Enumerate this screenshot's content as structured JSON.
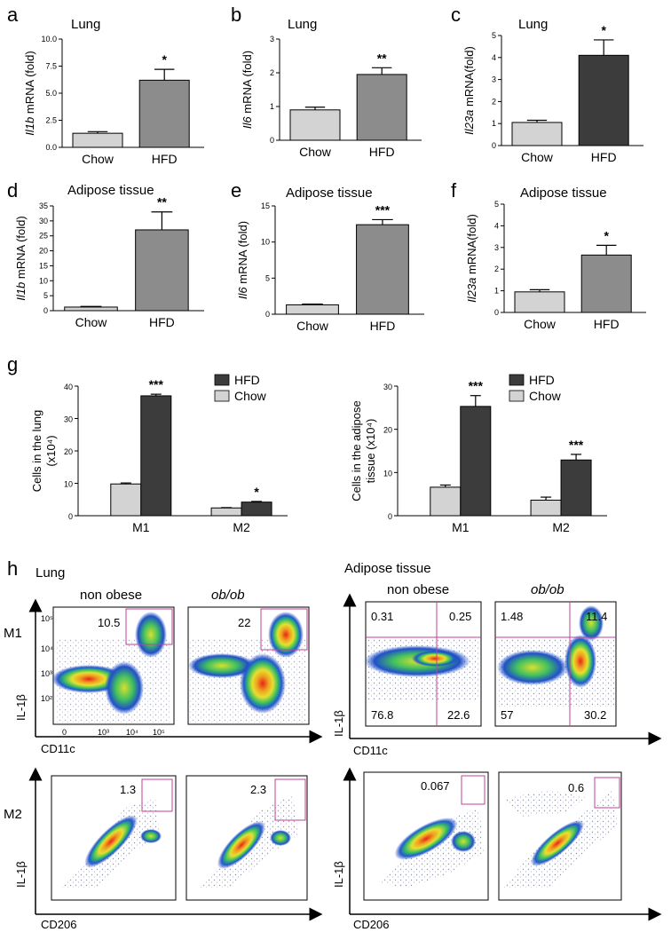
{
  "panel_labels": {
    "a": "a",
    "b": "b",
    "c": "c",
    "d": "d",
    "e": "e",
    "f": "f",
    "g": "g",
    "h": "h"
  },
  "colors": {
    "chow": "#d3d3d3",
    "hfd_light": "#8c8c8c",
    "hfd_dark": "#3c3c3c",
    "gate": "#c0409a"
  },
  "chart_data": [
    {
      "id": "a",
      "type": "bar",
      "title": "Lung",
      "ylabel_gene": "Il1b",
      "ylabel_rest": " mRNA (fold)",
      "categories": [
        "Chow",
        "HFD"
      ],
      "values": [
        1.3,
        6.2
      ],
      "errors": [
        0.15,
        1.0
      ],
      "ylim": [
        0,
        10
      ],
      "yticks": [
        "0.0",
        "2.5",
        "5.0",
        "7.5",
        "10.0"
      ],
      "yvals": [
        0,
        2.5,
        5,
        7.5,
        10
      ],
      "sig": "*",
      "hfd_color": "#8c8c8c"
    },
    {
      "id": "b",
      "type": "bar",
      "title": "Lung",
      "ylabel_gene": "Il6",
      "ylabel_rest": " mRNA (fold)",
      "categories": [
        "Chow",
        "HFD"
      ],
      "values": [
        0.9,
        1.95
      ],
      "errors": [
        0.08,
        0.2
      ],
      "ylim": [
        0,
        3
      ],
      "yticks": [
        "0",
        "1",
        "2",
        "3"
      ],
      "yvals": [
        0,
        1,
        2,
        3
      ],
      "sig": "**",
      "hfd_color": "#8c8c8c"
    },
    {
      "id": "c",
      "type": "bar",
      "title": "Lung",
      "ylabel_gene": "Il23a",
      "ylabel_rest": " mRNA(fold)",
      "categories": [
        "Chow",
        "HFD"
      ],
      "values": [
        1.05,
        4.1
      ],
      "errors": [
        0.1,
        0.7
      ],
      "ylim": [
        0,
        5
      ],
      "yticks": [
        "0",
        "1",
        "2",
        "3",
        "4",
        "5"
      ],
      "yvals": [
        0,
        1,
        2,
        3,
        4,
        5
      ],
      "sig": "*",
      "hfd_color": "#3c3c3c"
    },
    {
      "id": "d",
      "type": "bar",
      "title": "Adipose tissue",
      "ylabel_gene": "Il1b",
      "ylabel_rest": " mRNA (fold)",
      "categories": [
        "Chow",
        "HFD"
      ],
      "values": [
        1.2,
        27
      ],
      "errors": [
        0.2,
        6
      ],
      "ylim": [
        0,
        35
      ],
      "yticks": [
        "0",
        "5",
        "10",
        "15",
        "20",
        "25",
        "30",
        "35"
      ],
      "yvals": [
        0,
        5,
        10,
        15,
        20,
        25,
        30,
        35
      ],
      "sig": "**",
      "hfd_color": "#8c8c8c"
    },
    {
      "id": "e",
      "type": "bar",
      "title": "Adipose tissue",
      "ylabel_gene": "Il6",
      "ylabel_rest": " mRNA (fold)",
      "categories": [
        "Chow",
        "HFD"
      ],
      "values": [
        1.3,
        12.4
      ],
      "errors": [
        0.1,
        0.7
      ],
      "ylim": [
        0,
        15
      ],
      "yticks": [
        "0",
        "5",
        "10",
        "15"
      ],
      "yvals": [
        0,
        5,
        10,
        15
      ],
      "sig": "***",
      "hfd_color": "#8c8c8c"
    },
    {
      "id": "f",
      "type": "bar",
      "title": "Adipose tissue",
      "ylabel_gene": "Il23a",
      "ylabel_rest": " mRNA(fold)",
      "categories": [
        "Chow",
        "HFD"
      ],
      "values": [
        0.95,
        2.65
      ],
      "errors": [
        0.1,
        0.45
      ],
      "ylim": [
        0,
        5
      ],
      "yticks": [
        "0",
        "1",
        "2",
        "3",
        "4",
        "5"
      ],
      "yvals": [
        0,
        1,
        2,
        3,
        4,
        5
      ],
      "sig": "*",
      "hfd_color": "#8c8c8c"
    },
    {
      "id": "g1",
      "type": "bar",
      "ylabel": "Cells in the lung",
      "ylabel2": "(x10⁴)",
      "categories": [
        "M1",
        "M2"
      ],
      "series": [
        {
          "name": "Chow",
          "values": [
            9.8,
            2.4
          ],
          "errors": [
            0.3,
            0.1
          ]
        },
        {
          "name": "HFD",
          "values": [
            37,
            4.2
          ],
          "errors": [
            0.5,
            0.2
          ]
        }
      ],
      "ylim": [
        0,
        40
      ],
      "yticks": [
        "0",
        "10",
        "20",
        "30",
        "40"
      ],
      "yvals": [
        0,
        10,
        20,
        30,
        40
      ],
      "sig": [
        "***",
        "*"
      ],
      "legend": [
        "HFD",
        "Chow"
      ]
    },
    {
      "id": "g2",
      "type": "bar",
      "ylabel": "Cells in the adipose",
      "ylabel2": "tissue (x10⁴)",
      "categories": [
        "M1",
        "M2"
      ],
      "series": [
        {
          "name": "Chow",
          "values": [
            6.6,
            3.6
          ],
          "errors": [
            0.5,
            0.7
          ]
        },
        {
          "name": "HFD",
          "values": [
            25.3,
            12.9
          ],
          "errors": [
            2.5,
            1.3
          ]
        }
      ],
      "ylim": [
        0,
        30
      ],
      "yticks": [
        "0",
        "10",
        "20",
        "30"
      ],
      "yvals": [
        0,
        10,
        20,
        30
      ],
      "sig": [
        "***",
        "***"
      ],
      "legend": [
        "HFD",
        "Chow"
      ]
    }
  ],
  "flow": {
    "lung_title": "Lung",
    "adipose_title": "Adipose tissue",
    "col_non_obese": "non obese",
    "col_obob": "ob/ob",
    "row_m1": "M1",
    "row_m2": "M2",
    "yaxis": "IL-1β",
    "xaxis_m1": "CD11c",
    "xaxis_m2": "CD206",
    "lung_m1": [
      "10.5",
      "22"
    ],
    "lung_m2": [
      "1.3",
      "2.3"
    ],
    "adipose_m1_nonobese": [
      "0.31",
      "0.25",
      "76.8",
      "22.6"
    ],
    "adipose_m1_obob": [
      "1.48",
      "11.4",
      "57",
      "30.2"
    ],
    "adipose_m2": [
      "0.067",
      "0.6"
    ],
    "ticks_y": [
      "10²",
      "10³",
      "10⁴",
      "10⁵"
    ],
    "ticks_x": [
      "0",
      "10³",
      "10⁴",
      "10⁵"
    ]
  }
}
